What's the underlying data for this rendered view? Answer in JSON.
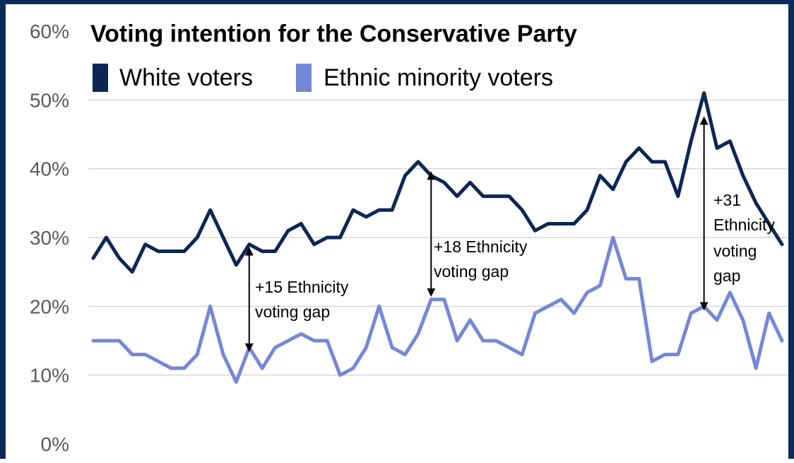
{
  "chart_data": {
    "type": "line",
    "title": "Voting intention for the Conservative Party",
    "xlabel": "",
    "ylabel": "",
    "ylim": [
      0,
      60
    ],
    "yticks": [
      "0%",
      "10%",
      "20%",
      "30%",
      "40%",
      "50%",
      "60%"
    ],
    "yunit": "%",
    "grid": true,
    "legend_position": "top-left",
    "x": [
      1,
      2,
      3,
      4,
      5,
      6,
      7,
      8,
      9,
      10,
      11,
      12,
      13,
      14,
      15,
      16,
      17,
      18,
      19,
      20,
      21,
      22,
      23,
      24,
      25,
      26,
      27,
      28,
      29,
      30,
      31,
      32,
      33,
      34,
      35,
      36,
      37,
      38,
      39,
      40,
      41,
      42,
      43,
      44,
      45,
      46,
      47,
      48,
      49,
      50,
      51,
      52,
      53,
      54
    ],
    "series": [
      {
        "name": "White voters",
        "color": "#0c2756",
        "values": [
          27,
          30,
          27,
          25,
          29,
          28,
          28,
          28,
          30,
          34,
          30,
          26,
          29,
          28,
          28,
          31,
          32,
          29,
          30,
          30,
          34,
          33,
          34,
          34,
          39,
          41,
          39,
          38,
          36,
          38,
          36,
          36,
          36,
          34,
          31,
          32,
          32,
          32,
          34,
          39,
          37,
          41,
          43,
          41,
          41,
          36,
          44,
          51,
          43,
          44,
          39,
          35,
          32,
          29
        ]
      },
      {
        "name": "Ethnic minority voters",
        "color": "#7488d8",
        "values": [
          15,
          15,
          15,
          13,
          13,
          12,
          11,
          11,
          13,
          20,
          13,
          9,
          14,
          11,
          14,
          15,
          16,
          15,
          15,
          10,
          11,
          14,
          20,
          14,
          13,
          16,
          21,
          21,
          15,
          18,
          15,
          15,
          14,
          13,
          19,
          20,
          21,
          19,
          22,
          23,
          30,
          24,
          24,
          12,
          13,
          13,
          19,
          20,
          18,
          22,
          18,
          11,
          19,
          15
        ]
      }
    ],
    "annotations": [
      {
        "line1": "+15 Ethnicity",
        "line2": "voting gap",
        "line3": "",
        "line4": "",
        "x": 13,
        "y_from": 14,
        "y_to": 28
      },
      {
        "line1": "+18 Ethnicity",
        "line2": "voting gap",
        "line3": "",
        "line4": "",
        "x": 27,
        "y_from": 22,
        "y_to": 39
      },
      {
        "line1": "+31",
        "line2": "Ethnicity",
        "line3": "voting",
        "line4": "gap",
        "x": 48,
        "y_from": 20,
        "y_to": 47
      }
    ]
  }
}
